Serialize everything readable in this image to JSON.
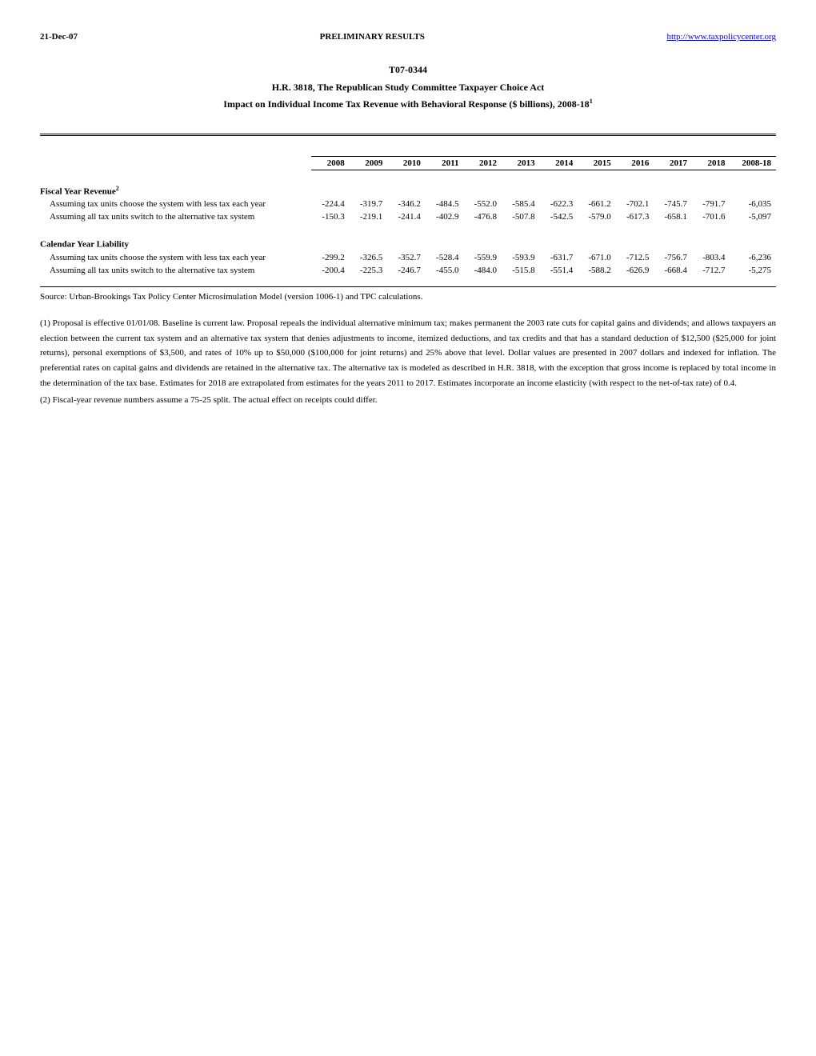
{
  "header": {
    "date": "21-Dec-07",
    "center": "PRELIMINARY RESULTS",
    "link_text": "http://www.taxpolicycenter.org",
    "link_href": "http://www.taxpolicycenter.org"
  },
  "title": {
    "line1": "T07-0344",
    "line2": "H.R. 3818, The Republican Study Committee Taxpayer Choice Act",
    "line3_pre": "Impact on Individual Income Tax Revenue with Behavioral Response ($ billions), 2008-18",
    "line3_sup": "1"
  },
  "table": {
    "years": [
      "2008",
      "2009",
      "2010",
      "2011",
      "2012",
      "2013",
      "2014",
      "2015",
      "2016",
      "2017",
      "2018",
      "2008-18"
    ],
    "sections": [
      {
        "label_pre": "Fiscal Year Revenue",
        "label_sup": "2",
        "rows": [
          {
            "desc": "Assuming tax units choose the system with less tax each year",
            "values": [
              "-224.4",
              "-319.7",
              "-346.2",
              "-484.5",
              "-552.0",
              "-585.4",
              "-622.3",
              "-661.2",
              "-702.1",
              "-745.7",
              "-791.7",
              "-6,035"
            ]
          },
          {
            "desc": "Assuming all tax units switch to the alternative tax system",
            "values": [
              "-150.3",
              "-219.1",
              "-241.4",
              "-402.9",
              "-476.8",
              "-507.8",
              "-542.5",
              "-579.0",
              "-617.3",
              "-658.1",
              "-701.6",
              "-5,097"
            ]
          }
        ]
      },
      {
        "label_pre": "Calendar Year Liability",
        "label_sup": "",
        "rows": [
          {
            "desc": "Assuming tax units choose the system with less tax each year",
            "values": [
              "-299.2",
              "-326.5",
              "-352.7",
              "-528.4",
              "-559.9",
              "-593.9",
              "-631.7",
              "-671.0",
              "-712.5",
              "-756.7",
              "-803.4",
              "-6,236"
            ]
          },
          {
            "desc": "Assuming all tax units switch to the alternative tax system",
            "values": [
              "-200.4",
              "-225.3",
              "-246.7",
              "-455.0",
              "-484.0",
              "-515.8",
              "-551.4",
              "-588.2",
              "-626.9",
              "-668.4",
              "-712.7",
              "-5,275"
            ]
          }
        ]
      }
    ]
  },
  "source": "Source: Urban-Brookings Tax Policy Center Microsimulation Model (version 1006-1) and TPC calculations.",
  "notes": [
    "(1) Proposal is effective 01/01/08. Baseline is current law. Proposal repeals the individual alternative minimum tax; makes permanent the 2003 rate cuts for capital gains and dividends; and allows taxpayers an election between the current tax system and an alternative tax system that denies adjustments to income, itemized deductions, and tax credits and that has a standard deduction of $12,500 ($25,000 for joint returns), personal exemptions of $3,500, and rates of 10% up to $50,000 ($100,000 for joint returns) and 25% above that level. Dollar values are presented in 2007 dollars and indexed for inflation. The preferential rates on capital gains and dividends are retained in the alternative tax. The alternative tax is modeled as described in H.R. 3818, with the exception that gross income is replaced by total income in the determination of the tax base. Estimates for 2018 are extrapolated from estimates for the years 2011 to 2017. Estimates incorporate an income elasticity (with respect to the net-of-tax rate) of 0.4.",
    "(2) Fiscal-year revenue numbers assume a 75-25 split. The actual effect on receipts could differ."
  ]
}
